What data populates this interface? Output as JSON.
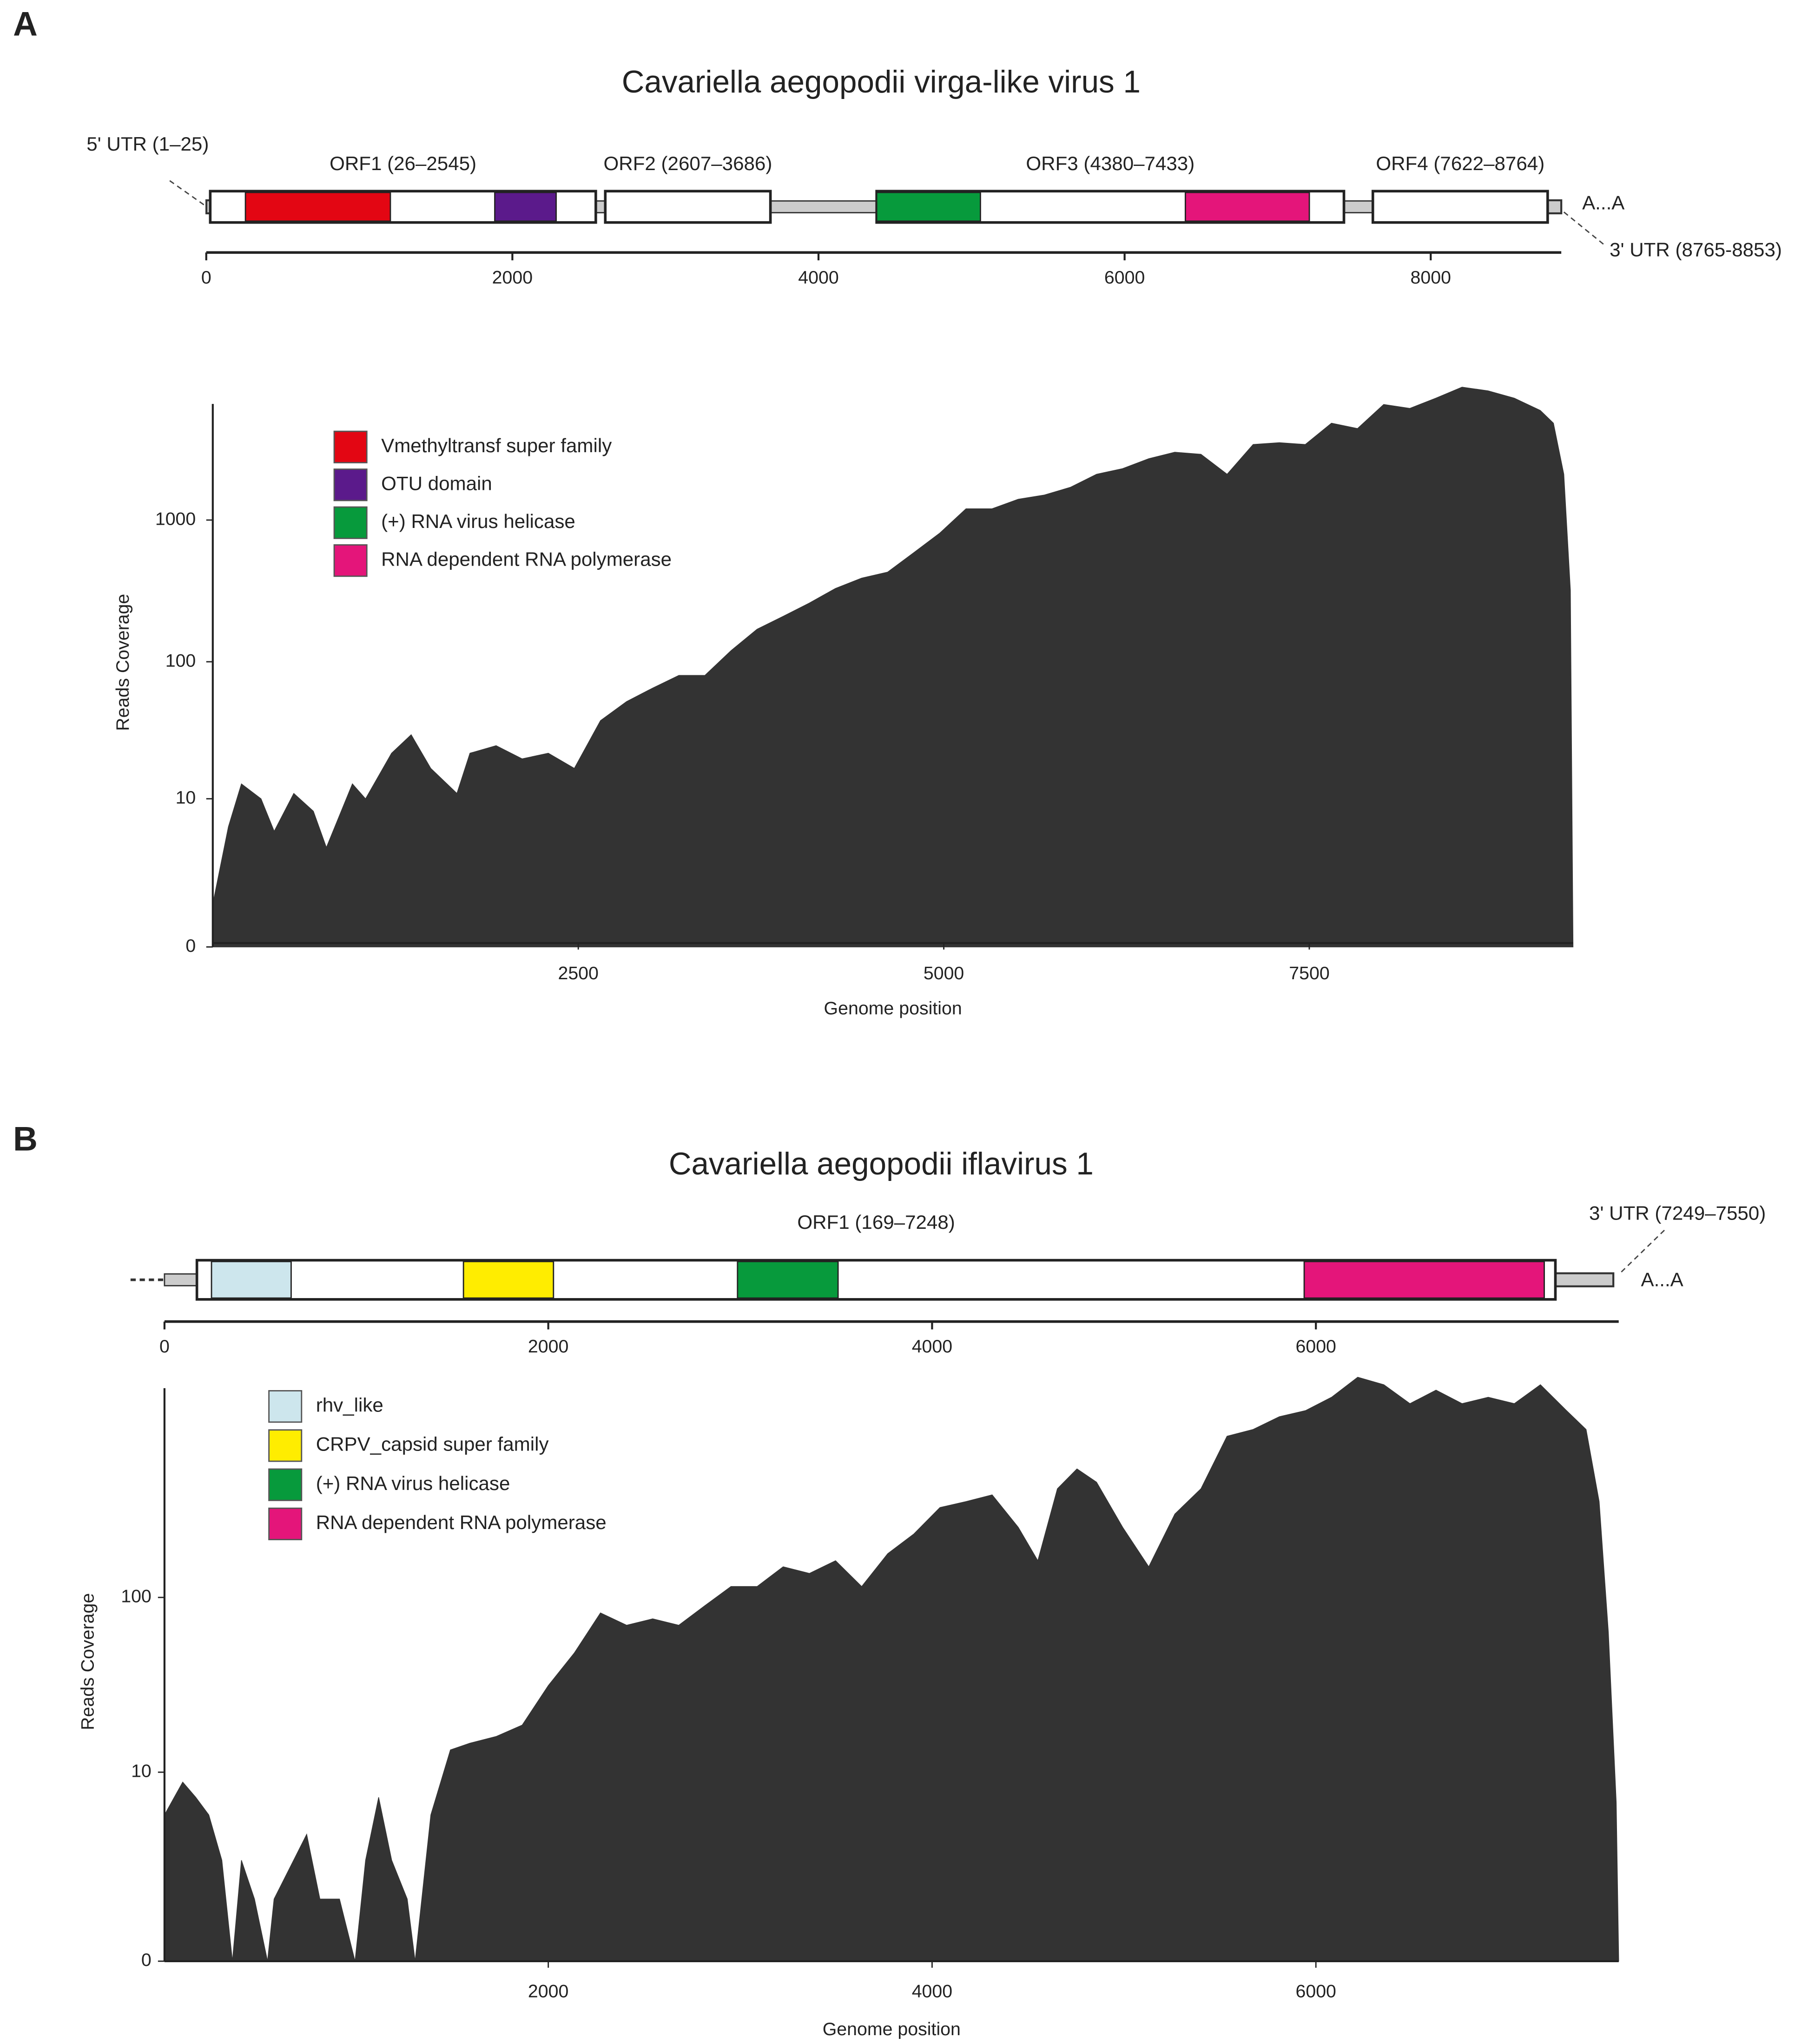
{
  "panel_labels": [
    "A",
    "B"
  ],
  "chart_data": [
    {
      "type": "genome",
      "title": "Cavariella aegopodii virga-like virus 1",
      "xlim": [
        0,
        8853
      ],
      "xticks": [
        0,
        2000,
        4000,
        6000,
        8000
      ],
      "orfs": [
        {
          "label": "ORF1 (26–2545)",
          "start": 26,
          "end": 2545
        },
        {
          "label": "ORF2 (2607–3686)",
          "start": 2607,
          "end": 3686
        },
        {
          "label": "ORF3 (4380–7433)",
          "start": 4380,
          "end": 7433
        },
        {
          "label": "ORF4 (7622–8764)",
          "start": 7622,
          "end": 8764
        }
      ],
      "domains": [
        {
          "color": "#e30613",
          "start": 256,
          "end": 1203
        },
        {
          "color": "#5b1a8b",
          "start": 1885,
          "end": 2286
        },
        {
          "color": "#079a3c",
          "start": 4380,
          "end": 5058
        },
        {
          "color": "#e4157a",
          "start": 6397,
          "end": 7207
        }
      ],
      "utrs": [
        {
          "label": "5' UTR (1–25)",
          "start": 1,
          "end": 25
        },
        {
          "label": "3' UTR (8765-8853)",
          "start": 8765,
          "end": 8853
        }
      ],
      "tail": "A...A"
    },
    {
      "type": "area",
      "xlabel": "Genome position",
      "ylabel": "Reads Coverage",
      "xlim": [
        0,
        9304
      ],
      "xticks": [
        2500,
        5000,
        7500
      ],
      "ylim": [
        0,
        10000
      ],
      "yticks": [
        0,
        10,
        100,
        1000
      ],
      "yscale": "log1p",
      "color": "#333333",
      "legend": [
        {
          "name": "Vmethyltransf super family",
          "color": "#e30613"
        },
        {
          "name": "OTU domain",
          "color": "#5b1a8b"
        },
        {
          "name": "(+) RNA virus helicase",
          "color": "#079a3c"
        },
        {
          "name": "RNA dependent RNA polymerase",
          "color": "#e4157a"
        }
      ],
      "x": [
        0,
        107,
        196,
        330,
        420,
        554,
        688,
        777,
        955,
        1045,
        1223,
        1357,
        1491,
        1670,
        1759,
        1938,
        2116,
        2295,
        2473,
        2652,
        2830,
        3009,
        3188,
        3366,
        3545,
        3723,
        3902,
        4080,
        4259,
        4438,
        4616,
        4795,
        4973,
        5152,
        5330,
        5509,
        5688,
        5866,
        6045,
        6223,
        6402,
        6580,
        6759,
        6938,
        7116,
        7295,
        7473,
        7652,
        7830,
        8009,
        8188,
        8366,
        8545,
        8723,
        8902,
        9080,
        9170,
        9241,
        9286,
        9304
      ],
      "values": [
        1,
        6,
        13,
        10,
        5.5,
        11,
        8,
        4,
        13,
        10,
        22,
        30,
        17,
        11,
        22,
        25,
        20,
        22,
        17,
        38,
        52,
        65,
        80,
        80,
        120,
        170,
        210,
        260,
        330,
        390,
        430,
        590,
        810,
        1200,
        1200,
        1400,
        1500,
        1700,
        2100,
        2300,
        2700,
        3000,
        2900,
        2100,
        3400,
        3500,
        3400,
        4800,
        4400,
        6500,
        6100,
        7200,
        8600,
        8100,
        7200,
        5900,
        4800,
        2100,
        320,
        0
      ]
    },
    {
      "type": "genome",
      "title": "Cavariella aegopodii iflavirus 1",
      "xlim": [
        0,
        7578
      ],
      "xticks": [
        0,
        2000,
        4000,
        6000
      ],
      "orfs": [
        {
          "label": "ORF1 (169–7248)",
          "start": 169,
          "end": 7248
        }
      ],
      "domains": [
        {
          "color": "#cde6ed",
          "start": 245,
          "end": 660
        },
        {
          "color": "#ffed00",
          "start": 1558,
          "end": 2027
        },
        {
          "color": "#079a3c",
          "start": 2986,
          "end": 3510
        },
        {
          "color": "#e4157a",
          "start": 5939,
          "end": 7190
        }
      ],
      "utrs": [
        {
          "label": "3' UTR (7249–7550)",
          "start": 7249,
          "end": 7550
        }
      ],
      "tail": "A...A"
    },
    {
      "type": "area",
      "xlabel": "Genome position",
      "ylabel": "Reads Coverage",
      "xlim": [
        0,
        7578
      ],
      "xticks": [
        2000,
        4000,
        6000
      ],
      "ylim": [
        0,
        2000
      ],
      "yticks": [
        0,
        10,
        100
      ],
      "yscale": "log1p",
      "color": "#333333",
      "legend": [
        {
          "name": "rhv_like",
          "color": "#cde6ed"
        },
        {
          "name": "CRPV_capsid super family",
          "color": "#ffed00"
        },
        {
          "name": "(+) RNA virus helicase",
          "color": "#079a3c"
        },
        {
          "name": "RNA dependent RNA polymerase",
          "color": "#e4157a"
        }
      ],
      "x": [
        0,
        95,
        163,
        231,
        299,
        354,
        401,
        469,
        537,
        571,
        741,
        810,
        912,
        993,
        1048,
        1116,
        1184,
        1265,
        1306,
        1388,
        1490,
        1592,
        1728,
        1864,
        2000,
        2136,
        2272,
        2408,
        2544,
        2680,
        2816,
        2952,
        3088,
        3224,
        3361,
        3497,
        3633,
        3769,
        3905,
        4041,
        4177,
        4313,
        4449,
        4551,
        4653,
        4755,
        4857,
        4993,
        5129,
        5265,
        5401,
        5537,
        5673,
        5810,
        5946,
        6082,
        6218,
        6354,
        6490,
        6626,
        6762,
        6898,
        7034,
        7170,
        7306,
        7408,
        7476,
        7524,
        7565,
        7578
      ],
      "values": [
        5.4,
        8.7,
        7,
        5.4,
        2.6,
        0,
        2.6,
        1.2,
        0,
        1.2,
        4,
        1.2,
        1.2,
        0,
        2.6,
        7,
        2.6,
        1.2,
        0,
        5.4,
        13.6,
        14.9,
        16.3,
        19,
        32,
        49,
        82,
        70,
        76,
        70,
        90,
        115,
        115,
        148,
        136,
        160,
        115,
        175,
        225,
        315,
        340,
        370,
        245,
        160,
        400,
        515,
        435,
        245,
        148,
        290,
        400,
        780,
        850,
        1000,
        1080,
        1280,
        1650,
        1500,
        1180,
        1400,
        1180,
        1280,
        1180,
        1500,
        1080,
        850,
        340,
        64,
        6.5,
        0
      ]
    }
  ]
}
